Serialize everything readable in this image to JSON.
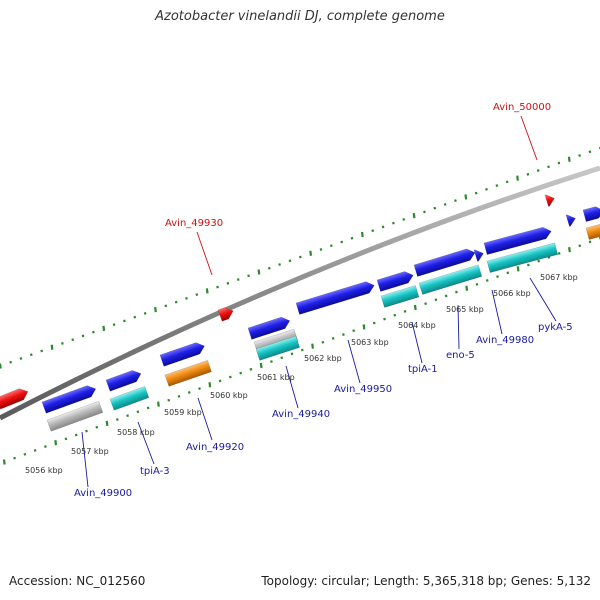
{
  "title": "Azotobacter vinelandii DJ, complete genome",
  "footer": {
    "accession": "Accession: NC_012560",
    "summary": "Topology: circular; Length: 5,365,318 bp; Genes: 5,132"
  },
  "colors": {
    "cds": "#1f1fe6",
    "rna": "#18c4c4",
    "orange": "#f08a10",
    "grey": "#b8b8b8",
    "highlight": "#ee1111",
    "gc_ticks": "#2a8a2a",
    "label_blue": "#1a1aa0",
    "label_red": "#cc1111"
  },
  "kbp_labels": [
    "5056 kbp",
    "5057 kbp",
    "5058 kbp",
    "5059 kbp",
    "5060 kbp",
    "5061 kbp",
    "5062 kbp",
    "5063 kbp",
    "5064 kbp",
    "5065 kbp",
    "5066 kbp",
    "5067 kbp"
  ],
  "gene_labels": [
    {
      "text": "Avin_49900",
      "kind": "blue"
    },
    {
      "text": "tpiA-3",
      "kind": "blue"
    },
    {
      "text": "Avin_49920",
      "kind": "blue"
    },
    {
      "text": "Avin_49940",
      "kind": "blue"
    },
    {
      "text": "Avin_49950",
      "kind": "blue"
    },
    {
      "text": "tpiA-1",
      "kind": "blue"
    },
    {
      "text": "eno-5",
      "kind": "blue"
    },
    {
      "text": "Avin_49980",
      "kind": "blue"
    },
    {
      "text": "pykA-5",
      "kind": "blue"
    },
    {
      "text": "Avin_49930",
      "kind": "red"
    },
    {
      "text": "Avin_50000",
      "kind": "red"
    }
  ]
}
